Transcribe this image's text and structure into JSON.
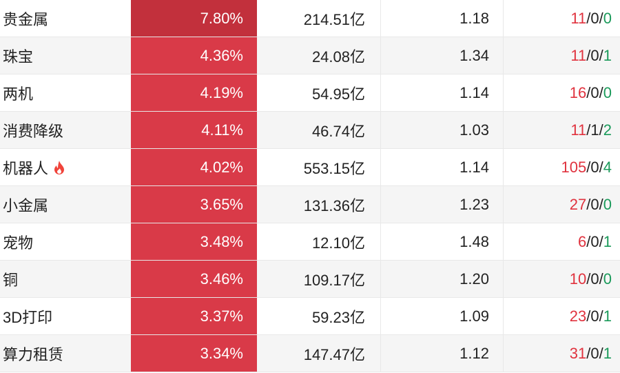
{
  "table": {
    "rows": [
      [
        "贵金属",
        "7.80%",
        "214.51亿",
        "1.18",
        "11/0/0"
      ],
      [
        "珠宝",
        "4.36%",
        "24.08亿",
        "1.34",
        "11/0/1"
      ],
      [
        "两机",
        "4.19%",
        "54.95亿",
        "1.14",
        "16/0/0"
      ],
      [
        "消费降级",
        "4.11%",
        "46.74亿",
        "1.03",
        "11/1/2"
      ],
      [
        "机器人",
        "4.02%",
        "553.15亿",
        "1.14",
        "105/0/4"
      ],
      [
        "小金属",
        "3.65%",
        "131.36亿",
        "1.23",
        "27/0/0"
      ],
      [
        "宠物",
        "3.48%",
        "12.10亿",
        "1.48",
        "6/0/1"
      ],
      [
        "铜",
        "3.46%",
        "109.17亿",
        "1.20",
        "10/0/0"
      ],
      [
        "3D打印",
        "3.37%",
        "59.23亿",
        "1.09",
        "23/0/1"
      ],
      [
        "算力租赁",
        "3.34%",
        "147.47亿",
        "1.12",
        "31/0/1"
      ]
    ]
  }
}
